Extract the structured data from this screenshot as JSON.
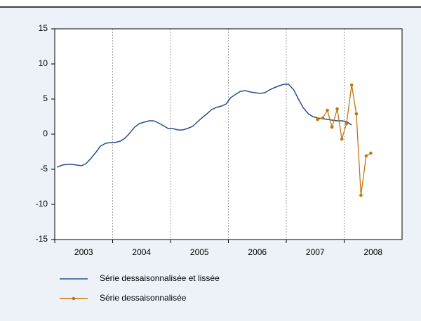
{
  "chart_data": {
    "type": "line",
    "xlim": [
      2003,
      2009
    ],
    "xticks": [
      2003,
      2004,
      2005,
      2006,
      2007,
      2008
    ],
    "ylim": [
      -15,
      15
    ],
    "yticks": [
      -15,
      -10,
      -5,
      0,
      5,
      10,
      15
    ],
    "grid": true,
    "series": [
      {
        "name": "Série dessaisonnalisée et lissée",
        "color": "#2b4c8c",
        "markers": false,
        "x": [
          2003.04,
          2003.13,
          2003.21,
          2003.29,
          2003.38,
          2003.46,
          2003.54,
          2003.63,
          2003.71,
          2003.79,
          2003.88,
          2003.96,
          2004.04,
          2004.13,
          2004.21,
          2004.29,
          2004.38,
          2004.46,
          2004.54,
          2004.63,
          2004.71,
          2004.79,
          2004.88,
          2004.96,
          2005.04,
          2005.13,
          2005.21,
          2005.29,
          2005.38,
          2005.46,
          2005.54,
          2005.63,
          2005.71,
          2005.79,
          2005.88,
          2005.96,
          2006.04,
          2006.13,
          2006.21,
          2006.29,
          2006.38,
          2006.46,
          2006.54,
          2006.63,
          2006.71,
          2006.79,
          2006.88,
          2006.96,
          2007.04,
          2007.13,
          2007.21,
          2007.29,
          2007.38,
          2007.46,
          2007.54,
          2007.63,
          2007.71,
          2007.79,
          2007.88,
          2007.96,
          2008.04,
          2008.13
        ],
        "values": [
          -4.7,
          -4.4,
          -4.3,
          -4.3,
          -4.4,
          -4.5,
          -4.2,
          -3.4,
          -2.6,
          -1.7,
          -1.3,
          -1.2,
          -1.2,
          -1.0,
          -0.6,
          0.1,
          1.0,
          1.5,
          1.7,
          1.9,
          1.9,
          1.6,
          1.2,
          0.8,
          0.8,
          0.6,
          0.6,
          0.8,
          1.1,
          1.7,
          2.3,
          2.9,
          3.5,
          3.8,
          4.0,
          4.3,
          5.2,
          5.7,
          6.1,
          6.2,
          6.0,
          5.9,
          5.8,
          5.9,
          6.3,
          6.6,
          6.9,
          7.1,
          7.1,
          6.3,
          5.0,
          3.8,
          2.9,
          2.5,
          2.3,
          2.2,
          2.1,
          2.0,
          1.9,
          1.9,
          1.8,
          1.3
        ]
      },
      {
        "name": "Série dessaisonnalisée",
        "color": "#c2740f",
        "markers": true,
        "x": [
          2007.54,
          2007.63,
          2007.71,
          2007.79,
          2007.88,
          2007.96,
          2008.04,
          2008.13,
          2008.21,
          2008.29,
          2008.38,
          2008.46
        ],
        "values": [
          2.1,
          2.3,
          3.4,
          1.0,
          3.6,
          -0.7,
          1.5,
          7.0,
          2.9,
          -8.7,
          -3.1,
          -2.7
        ]
      }
    ]
  }
}
